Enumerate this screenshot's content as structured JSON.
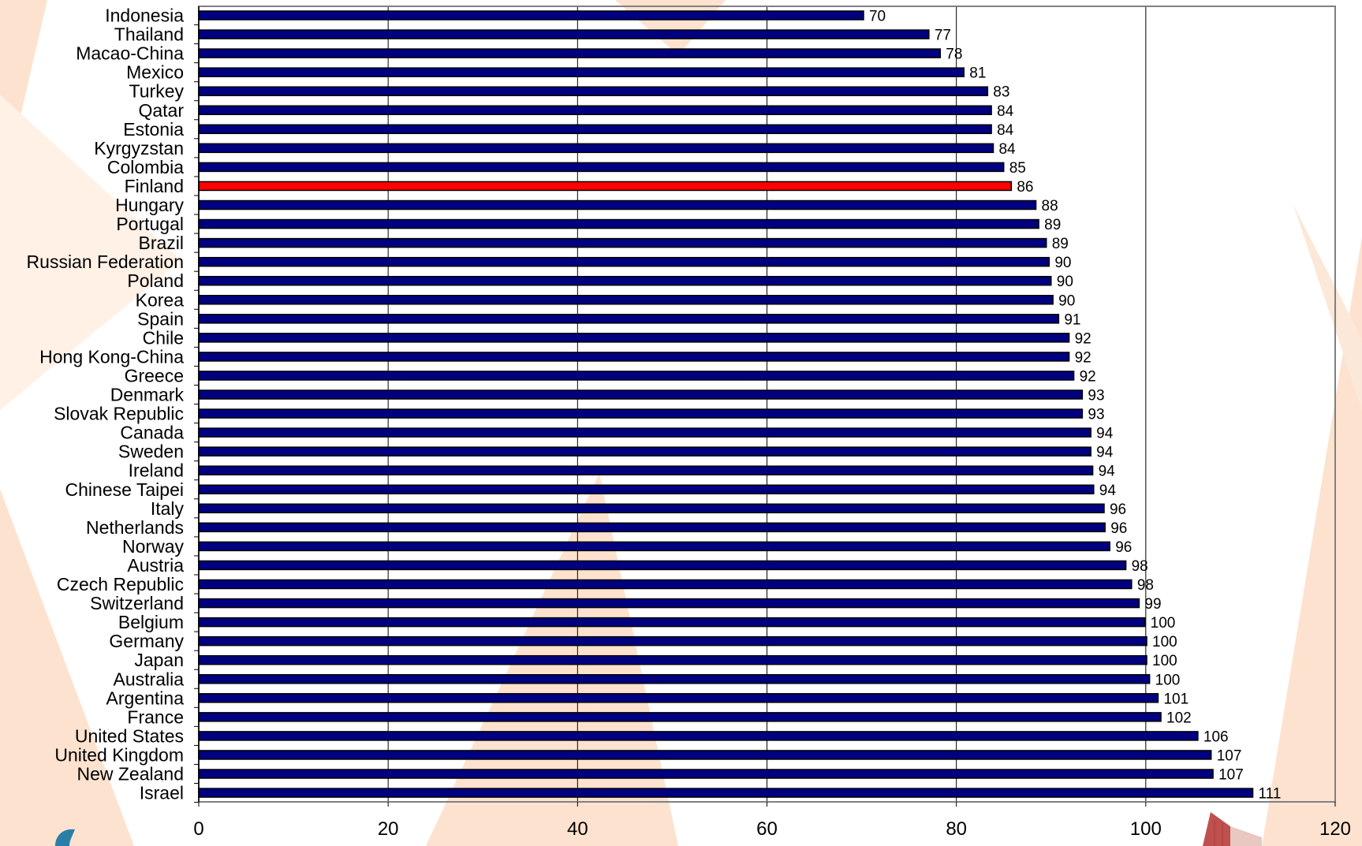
{
  "colors": {
    "bar": "#000080",
    "highlight": "#ff0000",
    "bar_stroke": "#000000",
    "grid": "#000000",
    "frame": "#808080",
    "bg_shape": "#fde3cf"
  },
  "chart_data": {
    "type": "bar",
    "orientation": "horizontal",
    "title": "",
    "xlabel": "",
    "ylabel": "",
    "xlim": [
      0,
      120
    ],
    "xticks": [
      0,
      20,
      40,
      60,
      80,
      100,
      120
    ],
    "grid": "vertical",
    "highlight": "Finland",
    "categories": [
      "Indonesia",
      "Thailand",
      "Macao-China",
      "Mexico",
      "Turkey",
      "Qatar",
      "Estonia",
      "Kyrgyzstan",
      "Colombia",
      "Finland",
      "Hungary",
      "Portugal",
      "Brazil",
      "Russian Federation",
      "Poland",
      "Korea",
      "Spain",
      "Chile",
      "Hong Kong-China",
      "Greece",
      "Denmark",
      "Slovak Republic",
      "Canada",
      "Sweden",
      "Ireland",
      "Chinese Taipei",
      "Italy",
      "Netherlands",
      "Norway",
      "Austria",
      "Czech Republic",
      "Switzerland",
      "Belgium",
      "Germany",
      "Japan",
      "Australia",
      "Argentina",
      "France",
      "United States",
      "United Kingdom",
      "New Zealand",
      "Israel"
    ],
    "values": [
      70.2,
      77.1,
      78.3,
      80.8,
      83.3,
      83.7,
      83.7,
      83.9,
      85.0,
      85.8,
      88.4,
      88.7,
      89.5,
      89.8,
      90.0,
      90.2,
      90.8,
      91.9,
      91.9,
      92.4,
      93.3,
      93.3,
      94.2,
      94.2,
      94.4,
      94.5,
      95.6,
      95.7,
      96.2,
      97.9,
      98.5,
      99.3,
      99.9,
      100.1,
      100.1,
      100.4,
      101.3,
      101.6,
      105.5,
      106.9,
      107.1,
      111.3
    ],
    "data_labels": [
      "70",
      "77",
      "78",
      "81",
      "83",
      "84",
      "84",
      "84",
      "85",
      "86",
      "88",
      "89",
      "89",
      "90",
      "90",
      "90",
      "91",
      "92",
      "92",
      "92",
      "93",
      "93",
      "94",
      "94",
      "94",
      "94",
      "96",
      "96",
      "96",
      "98",
      "98",
      "99",
      "100",
      "100",
      "100",
      "100",
      "101",
      "102",
      "106",
      "107",
      "107",
      "111"
    ]
  }
}
